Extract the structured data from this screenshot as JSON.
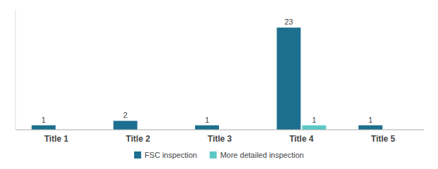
{
  "chart_data": {
    "type": "bar",
    "categories": [
      "Title 1",
      "Title 2",
      "Title 3",
      "Title 4",
      "Title 5"
    ],
    "series": [
      {
        "name": "FSC inspection",
        "color": "#1c6f8e",
        "values": [
          1,
          2,
          1,
          23,
          1
        ]
      },
      {
        "name": "More detailed inspection",
        "color": "#5bc8c8",
        "values": [
          0,
          0,
          0,
          1,
          0
        ]
      }
    ],
    "ylim": [
      0,
      27
    ],
    "tick_labels": "x",
    "data_labels": true,
    "legend": "bottom",
    "grid": false
  }
}
